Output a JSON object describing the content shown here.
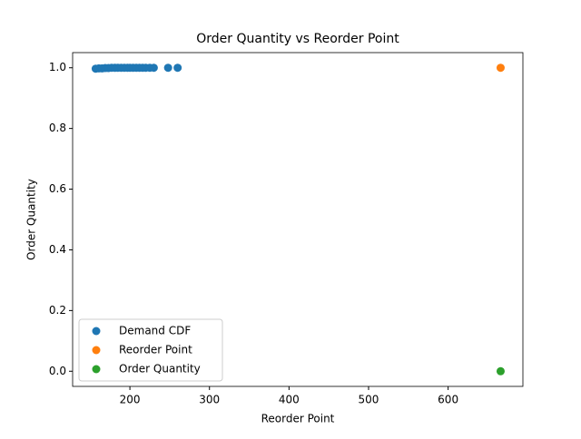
{
  "chart_data": {
    "type": "scatter",
    "title": "Order Quantity vs Reorder Point",
    "xlabel": "Reorder Point",
    "ylabel": "Order Quantity",
    "series": [
      {
        "name": "Demand CDF",
        "color": "#1f77b4",
        "x": [
          157,
          161,
          165,
          169,
          173,
          177,
          181,
          185,
          189,
          193,
          197,
          200,
          204,
          208,
          212,
          216,
          220,
          225,
          230,
          248,
          260
        ],
        "values": [
          0.997,
          0.998,
          0.998,
          0.999,
          0.999,
          1.0,
          1.0,
          1.0,
          1.0,
          1.0,
          1.0,
          1.0,
          1.0,
          1.0,
          1.0,
          1.0,
          1.0,
          1.0,
          1.0,
          1.0,
          1.0
        ]
      },
      {
        "name": "Reorder Point",
        "color": "#ff7f0e",
        "x": [
          666
        ],
        "values": [
          1.0
        ]
      },
      {
        "name": "Order Quantity",
        "color": "#2ca02c",
        "x": [
          666
        ],
        "values": [
          0.0
        ]
      }
    ],
    "xlim": [
      128,
      694
    ],
    "ylim": [
      -0.05,
      1.05
    ],
    "xticks": [
      200,
      300,
      400,
      500,
      600
    ],
    "yticks": [
      {
        "value": 0,
        "label": "0.0"
      },
      {
        "value": 0.2,
        "label": "0.2"
      },
      {
        "value": 0.4,
        "label": "0.4"
      },
      {
        "value": 0.6,
        "label": "0.6"
      },
      {
        "value": 0.8,
        "label": "0.8"
      },
      {
        "value": 1,
        "label": "1.0"
      }
    ],
    "legend": "lower left"
  }
}
